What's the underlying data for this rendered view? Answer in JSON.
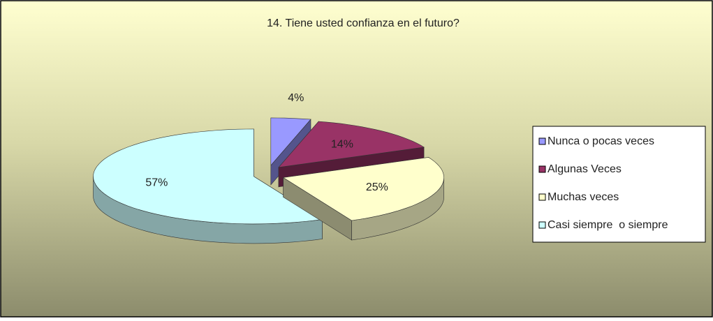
{
  "chart_data": {
    "type": "pie3d",
    "title": "14. Tiene usted confianza en el futuro?",
    "categories": [
      "Nunca o pocas veces",
      "Algunas Veces",
      "Muchas veces",
      "Casi siempre  o siempre"
    ],
    "values": [
      4,
      14,
      25,
      57
    ],
    "value_labels": [
      "4%",
      "14%",
      "25%",
      "57%"
    ],
    "colors": [
      "#9999ff",
      "#993366",
      "#ffffcc",
      "#ccffff"
    ],
    "legend": "right"
  }
}
